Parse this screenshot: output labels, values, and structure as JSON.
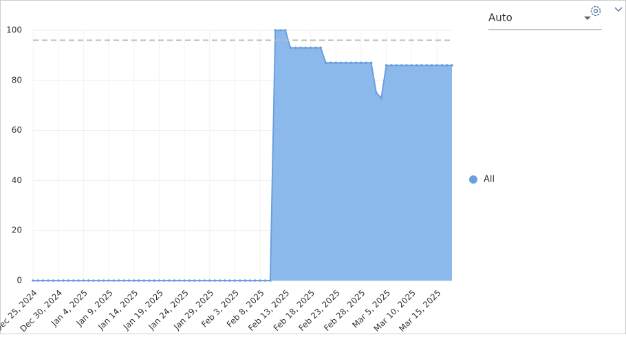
{
  "chart_data": {
    "type": "area",
    "controls": {
      "dropdown": "Auto"
    },
    "categories": [
      "Dec 25, 2024",
      null,
      null,
      null,
      null,
      "Dec 30, 2024",
      null,
      null,
      null,
      null,
      "Jan 4, 2025",
      null,
      null,
      null,
      null,
      "Jan 9, 2025",
      null,
      null,
      null,
      null,
      "Jan 14, 2025",
      null,
      null,
      null,
      null,
      "Jan 19, 2025",
      null,
      null,
      null,
      null,
      "Jan 24, 2025",
      null,
      null,
      null,
      null,
      "Jan 29, 2025",
      null,
      null,
      null,
      null,
      "Feb 3, 2025",
      null,
      null,
      null,
      null,
      "Feb 8, 2025",
      null,
      null,
      null,
      null,
      "Feb 13, 2025",
      null,
      null,
      null,
      null,
      "Feb 18, 2025",
      null,
      null,
      null,
      null,
      "Feb 23, 2025",
      null,
      null,
      null,
      null,
      "Feb 28, 2025",
      null,
      null,
      null,
      null,
      "Mar 5, 2025",
      null,
      null,
      null,
      null,
      "Mar 10, 2025",
      null,
      null,
      null,
      null,
      "Mar 15, 2025",
      null,
      null,
      null
    ],
    "series": [
      {
        "name": "All",
        "color": "#6a9fe0",
        "fill": "#8cb9eb",
        "values": [
          0,
          0,
          0,
          0,
          0,
          0,
          0,
          0,
          0,
          0,
          0,
          0,
          0,
          0,
          0,
          0,
          0,
          0,
          0,
          0,
          0,
          0,
          0,
          0,
          0,
          0,
          0,
          0,
          0,
          0,
          0,
          0,
          0,
          0,
          0,
          0,
          0,
          0,
          0,
          0,
          0,
          0,
          0,
          0,
          0,
          0,
          0,
          0,
          100,
          100,
          100,
          93,
          93,
          93,
          93,
          93,
          93,
          93,
          87,
          87,
          87,
          87,
          87,
          87,
          87,
          87,
          87,
          87,
          75,
          73,
          86,
          86,
          86,
          86,
          86,
          86,
          86,
          86,
          86,
          86,
          86,
          86,
          86,
          86
        ]
      }
    ],
    "ylim": [
      0,
      100
    ],
    "yticks": [
      0,
      20,
      40,
      60,
      80,
      100
    ],
    "grid": true,
    "reference_line": 96,
    "legend": "right"
  }
}
